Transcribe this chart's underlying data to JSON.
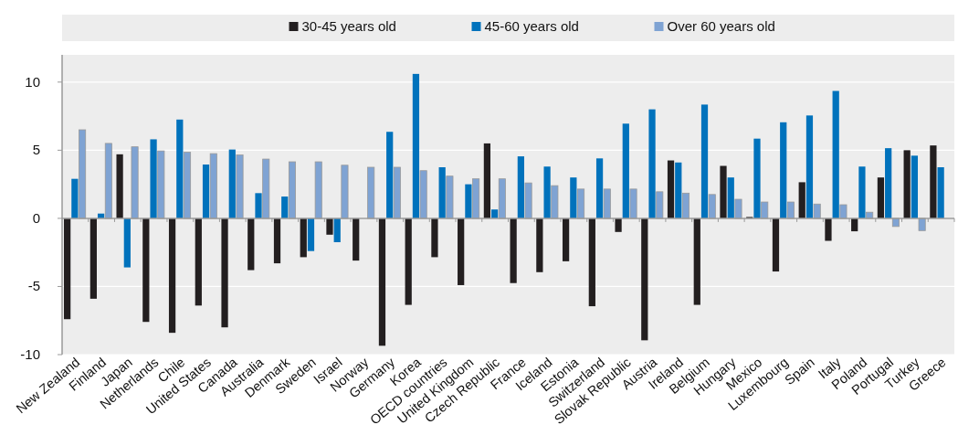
{
  "chart_data": {
    "type": "bar",
    "categories": [
      "New Zealand",
      "Finland",
      "Japan",
      "Netherlands",
      "Chile",
      "United States",
      "Canada",
      "Australia",
      "Denmark",
      "Sweden",
      "Israel",
      "Norway",
      "Germany",
      "Korea",
      "OECD countries",
      "United Kingdom",
      "Czech Republic",
      "France",
      "Iceland",
      "Estonia",
      "Switzerland",
      "Slovak Republic",
      "Austria",
      "Ireland",
      "Belgium",
      "Hungary",
      "Mexico",
      "Luxembourg",
      "Spain",
      "Italy",
      "Poland",
      "Portugal",
      "Turkey",
      "Greece"
    ],
    "series": [
      {
        "name": "30-45 years old",
        "color": "#231f20",
        "values": [
          -7.4,
          -5.9,
          4.7,
          -7.6,
          -8.4,
          -6.4,
          -8.0,
          -3.8,
          -3.3,
          -2.85,
          -1.2,
          -3.1,
          -9.35,
          -6.35,
          -2.85,
          -4.9,
          5.5,
          -4.75,
          -3.95,
          -3.15,
          -6.45,
          -1.0,
          -8.95,
          4.25,
          -6.35,
          3.85,
          0.1,
          -3.9,
          2.65,
          -1.65,
          -0.95,
          3.0,
          5.0,
          5.35
        ]
      },
      {
        "name": "45-60 years old",
        "color": "#0072bc",
        "values": [
          2.9,
          0.35,
          -3.6,
          5.8,
          7.25,
          3.95,
          5.05,
          1.85,
          1.6,
          -2.4,
          -1.75,
          null,
          6.35,
          10.6,
          3.75,
          2.5,
          0.65,
          4.55,
          3.8,
          3.0,
          4.4,
          6.95,
          8.0,
          4.1,
          8.35,
          3.0,
          5.85,
          7.05,
          7.55,
          9.35,
          3.8,
          5.15,
          4.6,
          3.75
        ]
      },
      {
        "name": "Over 60 years old",
        "color": "#7fa3d3",
        "values": [
          6.5,
          5.5,
          5.25,
          4.95,
          4.85,
          4.75,
          4.65,
          4.35,
          4.15,
          4.15,
          3.9,
          3.75,
          3.75,
          3.5,
          3.1,
          2.9,
          2.9,
          2.6,
          2.4,
          2.15,
          2.15,
          2.15,
          1.95,
          1.85,
          1.75,
          1.4,
          1.2,
          1.2,
          1.05,
          1.0,
          0.45,
          -0.6,
          -0.9,
          null
        ]
      }
    ],
    "ylim": [
      -10,
      12
    ],
    "yticks": [
      -10,
      -5,
      0,
      5,
      10
    ],
    "grid": "y",
    "legend": "top"
  }
}
